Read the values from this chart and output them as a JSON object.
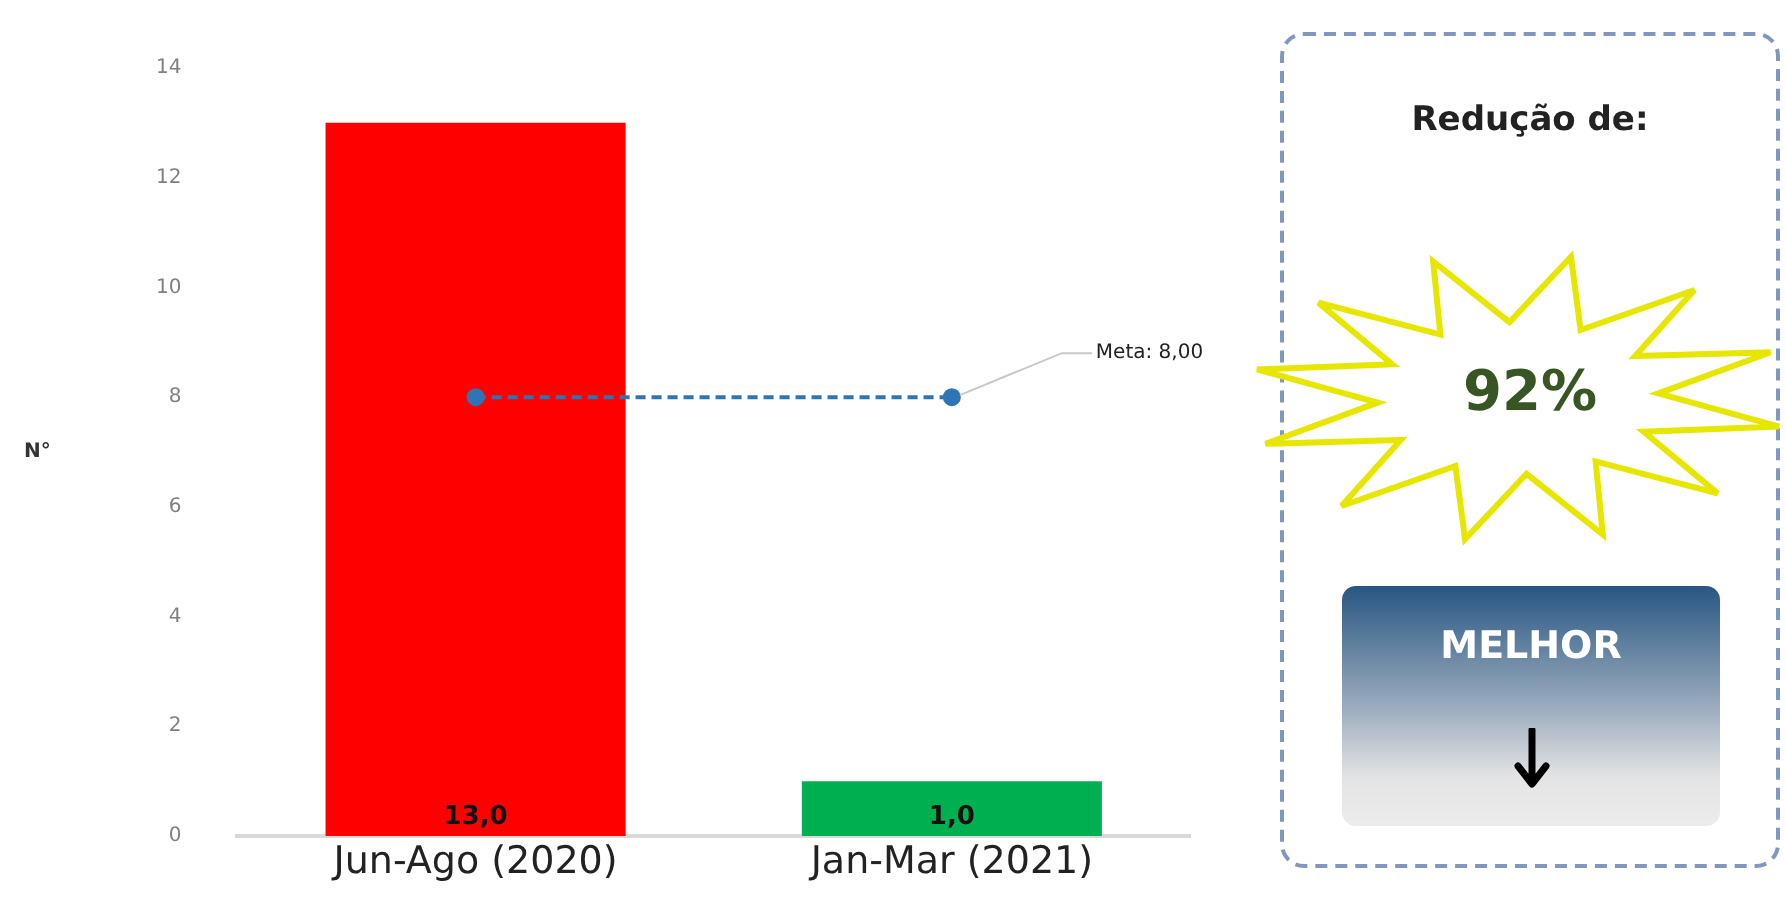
{
  "chart_data": [
    {
      "type": "bar",
      "ylabel": "N°",
      "categories": [
        "Jun-Ago (2020)",
        "Jan-Mar (2021)"
      ],
      "ylim": [
        0,
        14
      ],
      "yticks": [
        0,
        2,
        4,
        6,
        8,
        10,
        12,
        14
      ],
      "grid": false,
      "legend": false,
      "series": [
        {
          "type": "bar",
          "colors": [
            "#ff0000",
            "#00b050"
          ],
          "values": [
            13,
            1
          ],
          "value_labels": [
            "13,0",
            "1,0"
          ]
        },
        {
          "type": "line",
          "color": "#2e75b6",
          "values": [
            8,
            8
          ],
          "line_style": "dashed",
          "marker": "circle"
        }
      ],
      "annotations": [
        {
          "text": "Meta: 8,00",
          "x": "Jan-Mar (2021)",
          "y": 8
        }
      ]
    },
    {
      "type": "other",
      "title": "Redução de:",
      "annotations": [
        "92%",
        "MELHOR"
      ]
    }
  ]
}
